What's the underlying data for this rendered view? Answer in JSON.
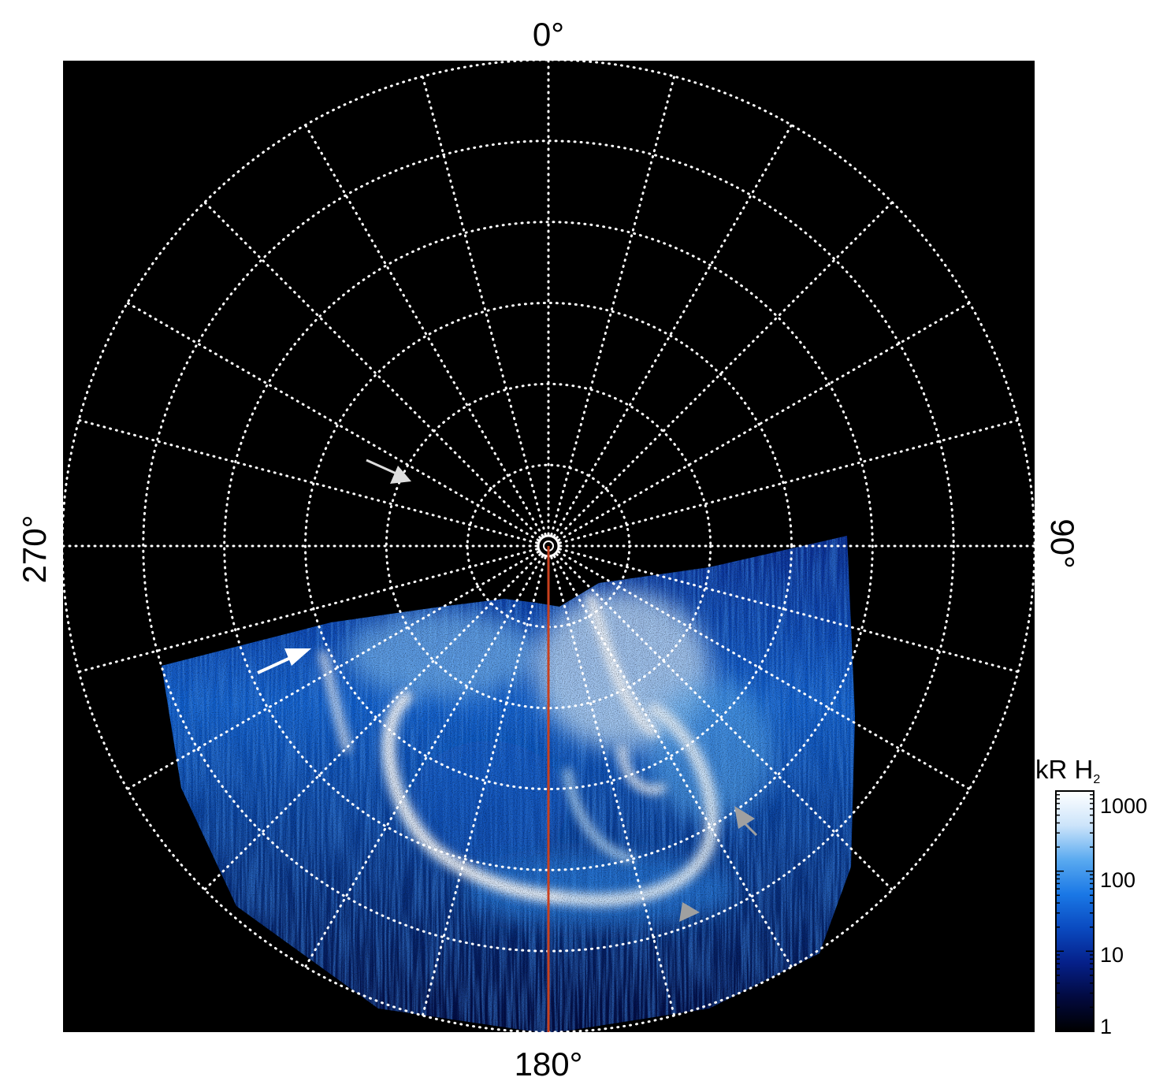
{
  "figure": {
    "background": "#000000",
    "grid_color": "#ffffff",
    "meridian_line_color": "#c8401e",
    "emission_colors": [
      "#000000",
      "#020a40",
      "#0a2a90",
      "#1060d0",
      "#2a86e8",
      "#7ab8f2",
      "#d0e8fc",
      "#ffffff"
    ],
    "labels": {
      "top": "0°",
      "bottom": "180°",
      "left": "270°",
      "right": "90°"
    },
    "grid": {
      "meridian_spacing_deg": 15,
      "latitude_circles": 6,
      "style": "dotted"
    },
    "arrows": [
      {
        "name": "white-arrow-upper-left",
        "color": "#dddddd"
      },
      {
        "name": "white-arrow-left",
        "color": "#ffffff"
      },
      {
        "name": "gray-arrowhead-right",
        "color": "#a0a0a0"
      },
      {
        "name": "gray-arrowhead-bottom",
        "color": "#a0a0a0"
      }
    ]
  },
  "colorbar": {
    "title_main": "kR H",
    "title_sub": "2",
    "scale": "log",
    "ticks": [
      "1000",
      "100",
      "10",
      "1"
    ],
    "colors": [
      "#ffffff",
      "#cce4fa",
      "#5aaaf0",
      "#1a78e6",
      "#0a4ac0",
      "#05208a",
      "#020a40",
      "#000000"
    ]
  }
}
